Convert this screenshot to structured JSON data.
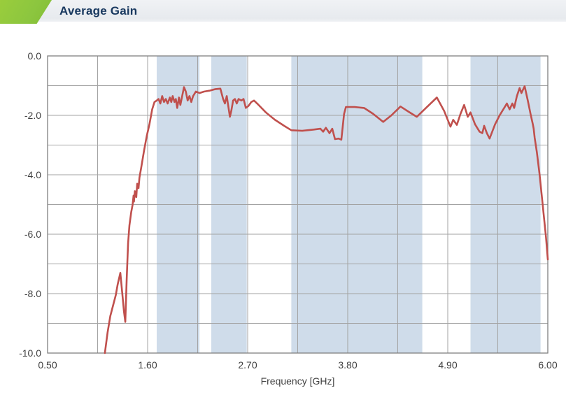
{
  "header": {
    "title": "Average Gain",
    "accent_color": "#8CC63F",
    "title_color": "#17375E"
  },
  "chart_data": {
    "type": "line",
    "title": "Average Gain",
    "xlabel": "Frequency [GHz]",
    "ylabel": "",
    "xlim": [
      0.5,
      6.0
    ],
    "ylim": [
      -10.0,
      0.0
    ],
    "grid": true,
    "legend": "none",
    "x_tick_labels": [
      "0.50",
      "1.60",
      "2.70",
      "3.80",
      "4.90",
      "6.00"
    ],
    "x_tick_values": [
      0.5,
      1.6,
      2.7,
      3.8,
      4.9,
      6.0
    ],
    "x_grid_divisions": 10,
    "y_tick_labels": [
      "0.0",
      "-2.0",
      "-4.0",
      "-6.0",
      "-8.0",
      "-10.0"
    ],
    "y_tick_values": [
      0,
      -2,
      -4,
      -6,
      -8,
      -10
    ],
    "y_grid_step": 1.0,
    "highlight_bands_ghz": [
      [
        1.7,
        2.17
      ],
      [
        2.3,
        2.69
      ],
      [
        3.18,
        4.62
      ],
      [
        5.15,
        5.92
      ]
    ],
    "colors": {
      "line": "#C0504D",
      "band": "#CFDCEA",
      "grid": "#A3A3A3",
      "axis_border": "#808080",
      "tick_text": "#404040"
    },
    "series": [
      {
        "name": "Average Gain",
        "color": "#C0504D",
        "points": [
          [
            1.13,
            -10.0
          ],
          [
            1.16,
            -9.3
          ],
          [
            1.19,
            -8.75
          ],
          [
            1.22,
            -8.4
          ],
          [
            1.25,
            -8.05
          ],
          [
            1.27,
            -7.7
          ],
          [
            1.3,
            -7.3
          ],
          [
            1.32,
            -7.95
          ],
          [
            1.34,
            -8.6
          ],
          [
            1.355,
            -8.95
          ],
          [
            1.37,
            -7.5
          ],
          [
            1.385,
            -6.3
          ],
          [
            1.4,
            -5.7
          ],
          [
            1.42,
            -5.25
          ],
          [
            1.435,
            -5.0
          ],
          [
            1.445,
            -4.7
          ],
          [
            1.45,
            -4.9
          ],
          [
            1.46,
            -4.55
          ],
          [
            1.475,
            -4.75
          ],
          [
            1.485,
            -4.3
          ],
          [
            1.5,
            -4.45
          ],
          [
            1.51,
            -4.1
          ],
          [
            1.53,
            -3.75
          ],
          [
            1.56,
            -3.2
          ],
          [
            1.59,
            -2.7
          ],
          [
            1.62,
            -2.3
          ],
          [
            1.65,
            -1.8
          ],
          [
            1.675,
            -1.55
          ],
          [
            1.7,
            -1.5
          ],
          [
            1.72,
            -1.45
          ],
          [
            1.74,
            -1.6
          ],
          [
            1.76,
            -1.35
          ],
          [
            1.78,
            -1.55
          ],
          [
            1.8,
            -1.45
          ],
          [
            1.82,
            -1.6
          ],
          [
            1.845,
            -1.4
          ],
          [
            1.86,
            -1.55
          ],
          [
            1.875,
            -1.35
          ],
          [
            1.895,
            -1.55
          ],
          [
            1.91,
            -1.45
          ],
          [
            1.925,
            -1.75
          ],
          [
            1.945,
            -1.4
          ],
          [
            1.96,
            -1.65
          ],
          [
            1.98,
            -1.35
          ],
          [
            2.0,
            -1.05
          ],
          [
            2.02,
            -1.2
          ],
          [
            2.04,
            -1.5
          ],
          [
            2.06,
            -1.35
          ],
          [
            2.08,
            -1.55
          ],
          [
            2.1,
            -1.35
          ],
          [
            2.13,
            -1.2
          ],
          [
            2.17,
            -1.25
          ],
          [
            2.22,
            -1.2
          ],
          [
            2.28,
            -1.17
          ],
          [
            2.34,
            -1.12
          ],
          [
            2.4,
            -1.1
          ],
          [
            2.43,
            -1.45
          ],
          [
            2.45,
            -1.6
          ],
          [
            2.47,
            -1.35
          ],
          [
            2.49,
            -1.75
          ],
          [
            2.505,
            -2.05
          ],
          [
            2.52,
            -1.85
          ],
          [
            2.54,
            -1.5
          ],
          [
            2.56,
            -1.45
          ],
          [
            2.58,
            -1.6
          ],
          [
            2.6,
            -1.45
          ],
          [
            2.63,
            -1.5
          ],
          [
            2.655,
            -1.45
          ],
          [
            2.68,
            -1.75
          ],
          [
            2.71,
            -1.68
          ],
          [
            2.74,
            -1.55
          ],
          [
            2.77,
            -1.5
          ],
          [
            2.82,
            -1.65
          ],
          [
            2.9,
            -1.9
          ],
          [
            3.0,
            -2.15
          ],
          [
            3.1,
            -2.35
          ],
          [
            3.18,
            -2.5
          ],
          [
            3.3,
            -2.52
          ],
          [
            3.42,
            -2.48
          ],
          [
            3.5,
            -2.45
          ],
          [
            3.53,
            -2.55
          ],
          [
            3.56,
            -2.42
          ],
          [
            3.6,
            -2.6
          ],
          [
            3.63,
            -2.45
          ],
          [
            3.66,
            -2.8
          ],
          [
            3.7,
            -2.78
          ],
          [
            3.73,
            -2.82
          ],
          [
            3.76,
            -1.95
          ],
          [
            3.78,
            -1.72
          ],
          [
            3.88,
            -1.72
          ],
          [
            3.98,
            -1.75
          ],
          [
            4.08,
            -1.95
          ],
          [
            4.19,
            -2.22
          ],
          [
            4.28,
            -2.0
          ],
          [
            4.38,
            -1.7
          ],
          [
            4.47,
            -1.88
          ],
          [
            4.56,
            -2.05
          ],
          [
            4.66,
            -1.75
          ],
          [
            4.78,
            -1.4
          ],
          [
            4.86,
            -1.85
          ],
          [
            4.93,
            -2.38
          ],
          [
            4.96,
            -2.15
          ],
          [
            5.0,
            -2.32
          ],
          [
            5.04,
            -1.95
          ],
          [
            5.08,
            -1.65
          ],
          [
            5.12,
            -2.05
          ],
          [
            5.15,
            -1.9
          ],
          [
            5.2,
            -2.3
          ],
          [
            5.25,
            -2.55
          ],
          [
            5.28,
            -2.6
          ],
          [
            5.3,
            -2.35
          ],
          [
            5.33,
            -2.6
          ],
          [
            5.36,
            -2.78
          ],
          [
            5.42,
            -2.3
          ],
          [
            5.47,
            -2.0
          ],
          [
            5.52,
            -1.75
          ],
          [
            5.55,
            -1.6
          ],
          [
            5.58,
            -1.8
          ],
          [
            5.61,
            -1.6
          ],
          [
            5.63,
            -1.75
          ],
          [
            5.66,
            -1.35
          ],
          [
            5.69,
            -1.08
          ],
          [
            5.71,
            -1.25
          ],
          [
            5.745,
            -1.02
          ],
          [
            5.78,
            -1.5
          ],
          [
            5.81,
            -1.95
          ],
          [
            5.835,
            -2.3
          ],
          [
            5.845,
            -2.45
          ],
          [
            5.855,
            -2.75
          ],
          [
            5.88,
            -3.25
          ],
          [
            5.91,
            -4.0
          ],
          [
            5.94,
            -4.9
          ],
          [
            5.96,
            -5.5
          ],
          [
            5.98,
            -6.1
          ],
          [
            6.0,
            -6.85
          ]
        ]
      }
    ]
  }
}
